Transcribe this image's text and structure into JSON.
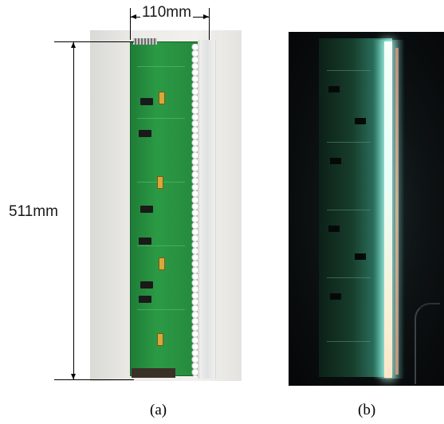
{
  "figure": {
    "panel_a": {
      "caption": "(a)",
      "dimensions": {
        "width_label": "110mm",
        "height_label": "511mm"
      }
    },
    "panel_b": {
      "caption": "(b)"
    }
  },
  "colors": {
    "pcb_green": "#2b9a45",
    "led_glow": "#78f0e6",
    "background_dark": "#050607"
  }
}
